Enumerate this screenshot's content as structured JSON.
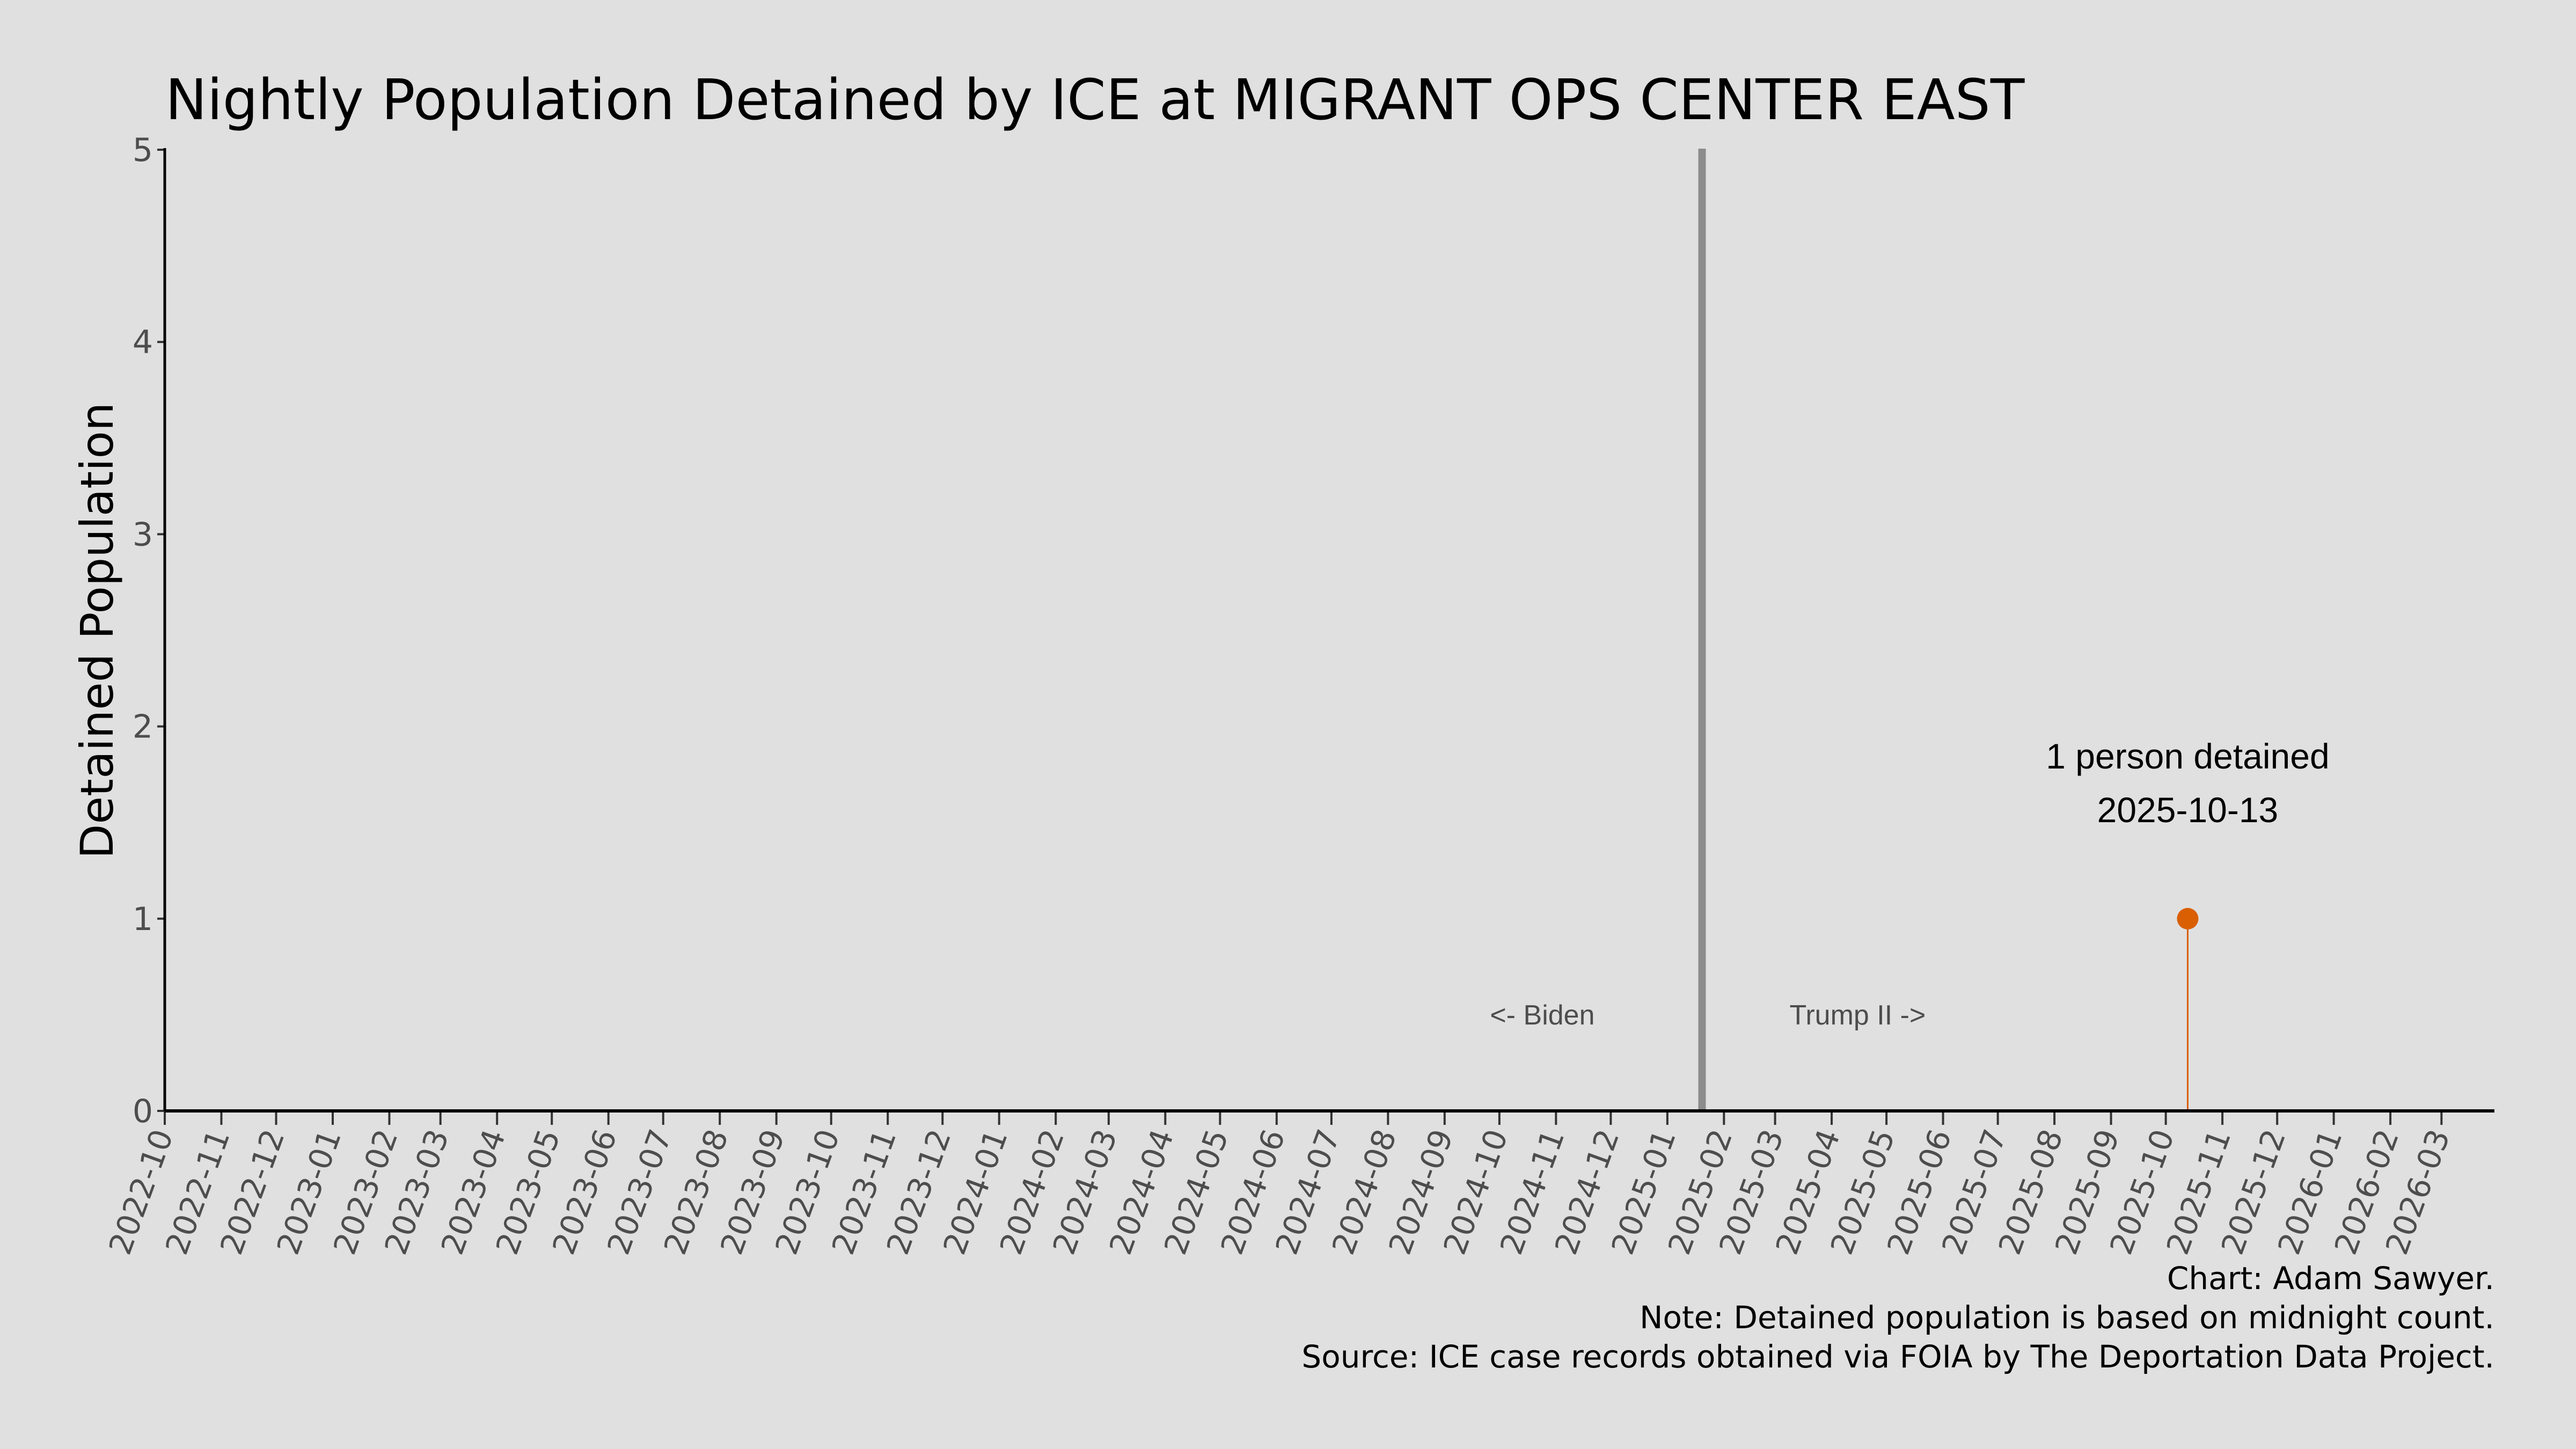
{
  "chart_data": {
    "type": "line",
    "title": "Nightly Population Detained by ICE at MIGRANT OPS CENTER EAST",
    "xlabel": "",
    "ylabel": "Detained Population",
    "xlim": [
      "2022-10-01",
      "2026-03-30"
    ],
    "ylim": [
      0,
      5
    ],
    "y_ticks": [
      0,
      1,
      2,
      3,
      4,
      5
    ],
    "x_tick_labels": [
      "2022-10",
      "2022-11",
      "2022-12",
      "2023-01",
      "2023-02",
      "2023-03",
      "2023-04",
      "2023-05",
      "2023-06",
      "2023-07",
      "2023-08",
      "2023-09",
      "2023-10",
      "2023-11",
      "2023-12",
      "2024-01",
      "2024-02",
      "2024-03",
      "2024-04",
      "2024-05",
      "2024-06",
      "2024-07",
      "2024-08",
      "2024-09",
      "2024-10",
      "2024-11",
      "2024-12",
      "2025-01",
      "2025-02",
      "2025-03",
      "2025-04",
      "2025-05",
      "2025-06",
      "2025-07",
      "2025-08",
      "2025-09",
      "2025-10",
      "2025-11",
      "2025-12",
      "2026-01",
      "2026-02",
      "2026-03"
    ],
    "grid": false,
    "series": [
      {
        "points": [
          {
            "x": "2025-10-13",
            "y": 1
          }
        ],
        "color": "#d95f02",
        "style": "lollipop"
      }
    ],
    "reference_line": {
      "x": "2025-01-20",
      "color": "#8c8c8c"
    },
    "annotations": {
      "left_era": "<- Biden",
      "right_era": "Trump II ->",
      "point_line1": "1 person detained",
      "point_line2": "2025-10-13"
    }
  },
  "caption": {
    "line1": "Chart: Adam Sawyer.",
    "line2": "Note: Detained population is based on midnight count.",
    "line3": "Source: ICE case records obtained via FOIA by The Deportation Data Project."
  }
}
